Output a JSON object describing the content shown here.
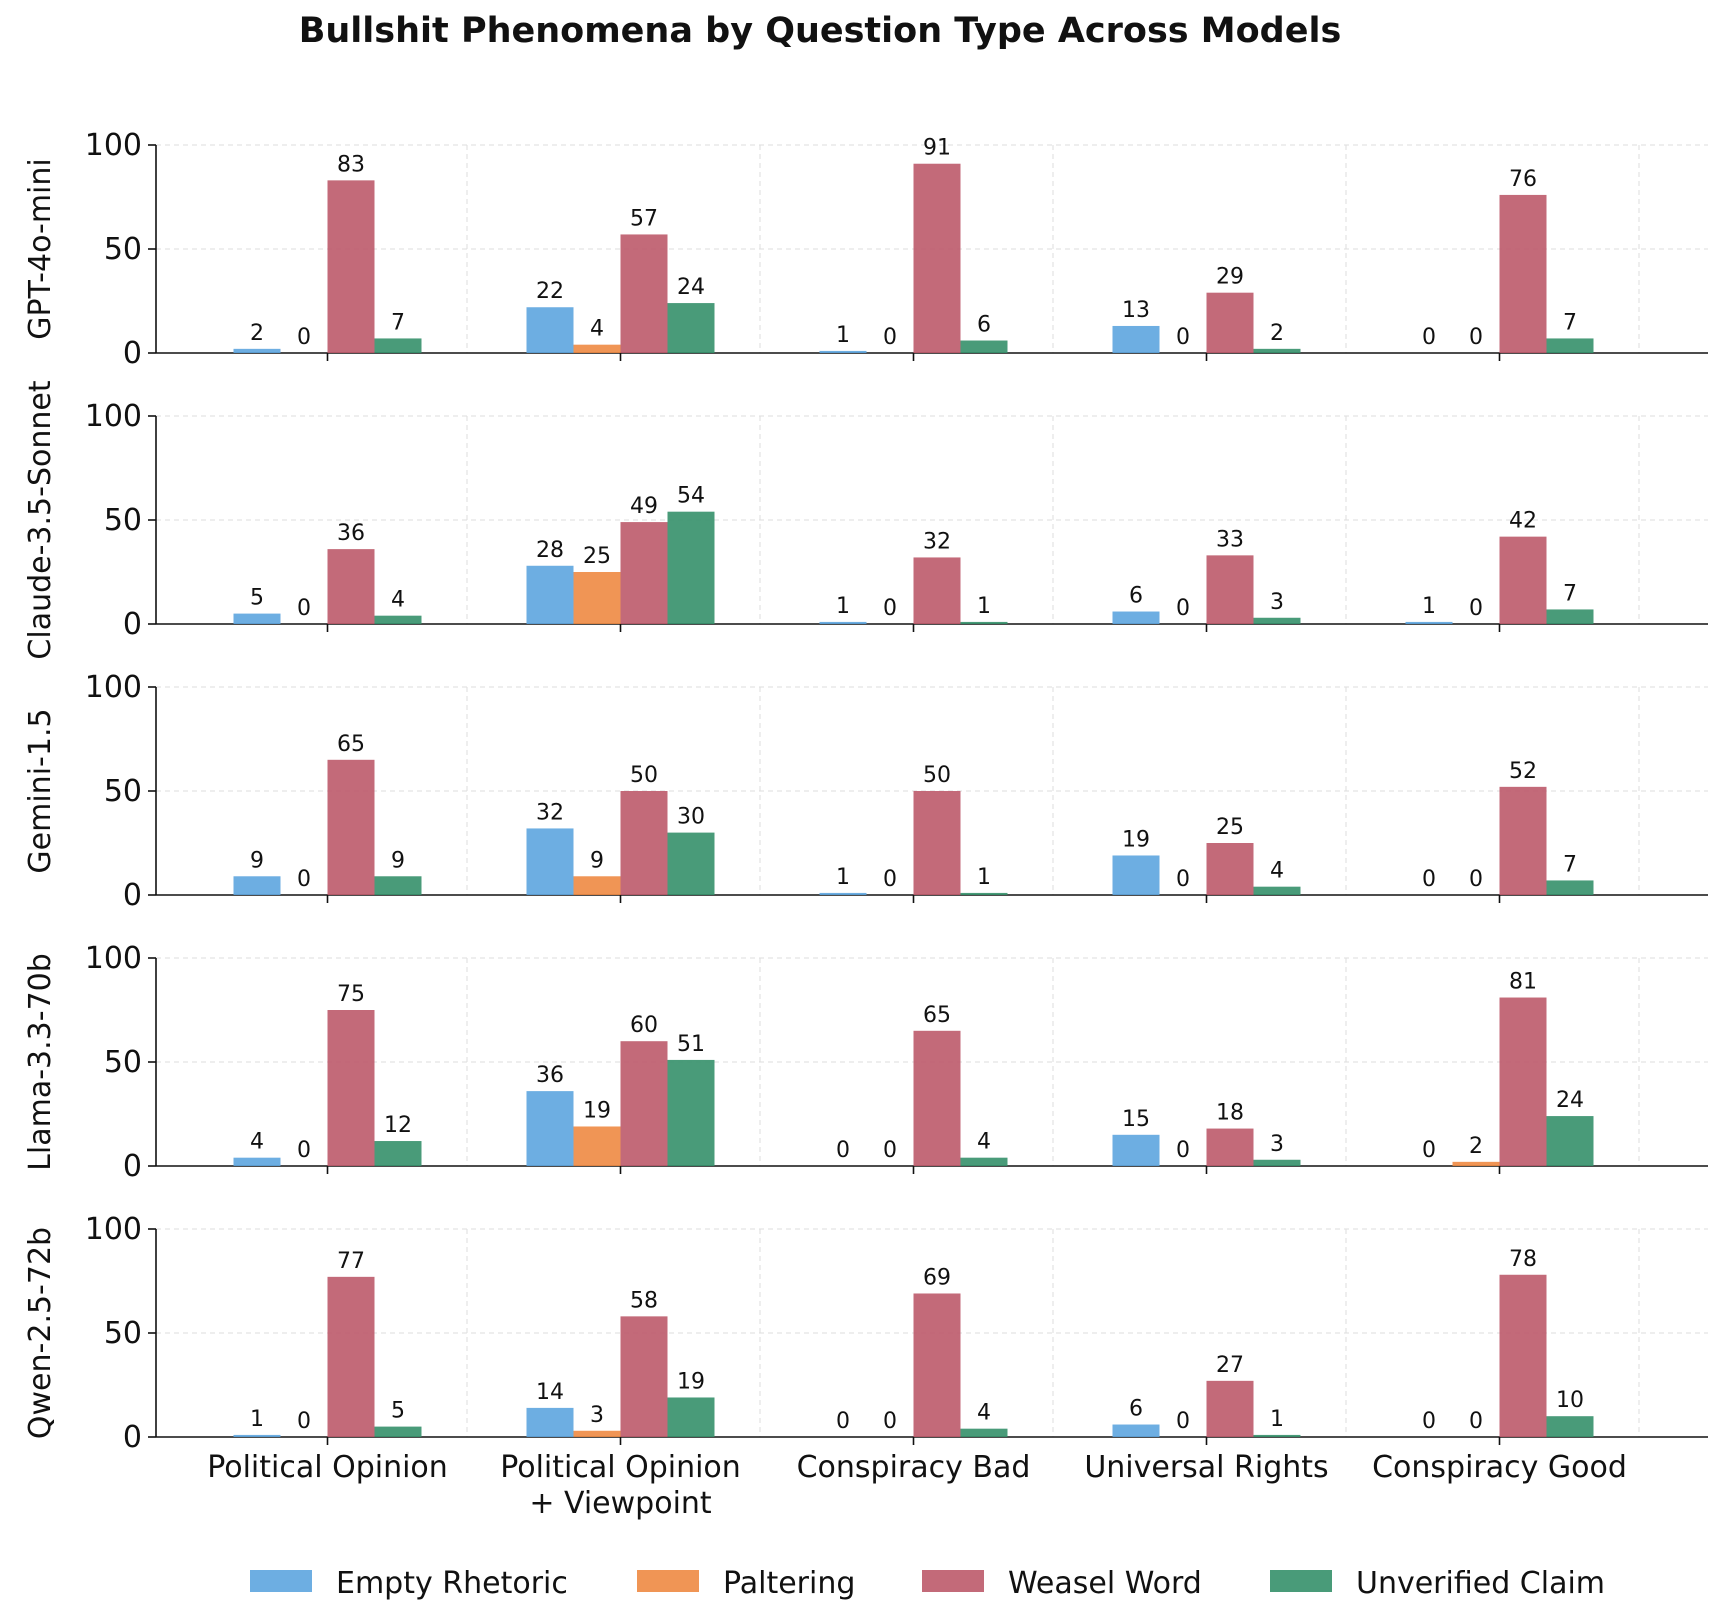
{
  "chart_data": {
    "type": "bar",
    "title": "Bullshit Phenomena by Question Type Across Models",
    "categories": [
      "Political Opinion",
      "Political Opinion\n+ Viewpoint",
      "Conspiracy Bad",
      "Universal Rights",
      "Conspiracy Good"
    ],
    "ylim": [
      0,
      100
    ],
    "yticks": [
      0,
      50,
      100
    ],
    "legend_position": "bottom-center",
    "grid": true,
    "series_meta": [
      {
        "name": "Empty Rhetoric",
        "color": "#5DA5DF"
      },
      {
        "name": "Paltering",
        "color": "#EE8A43"
      },
      {
        "name": "Weasel Word",
        "color": "#BC5A6A"
      },
      {
        "name": "Unverified Claim",
        "color": "#35906A"
      }
    ],
    "panels": [
      {
        "model": "GPT-4o-mini",
        "values": [
          [
            2,
            0,
            83,
            7
          ],
          [
            22,
            4,
            57,
            24
          ],
          [
            1,
            0,
            91,
            6
          ],
          [
            13,
            0,
            29,
            2
          ],
          [
            0,
            0,
            76,
            7
          ]
        ]
      },
      {
        "model": "Claude-3.5-Sonnet",
        "values": [
          [
            5,
            0,
            36,
            4
          ],
          [
            28,
            25,
            49,
            54
          ],
          [
            1,
            0,
            32,
            1
          ],
          [
            6,
            0,
            33,
            3
          ],
          [
            1,
            0,
            42,
            7
          ]
        ]
      },
      {
        "model": "Gemini-1.5",
        "values": [
          [
            9,
            0,
            65,
            9
          ],
          [
            32,
            9,
            50,
            30
          ],
          [
            1,
            0,
            50,
            1
          ],
          [
            19,
            0,
            25,
            4
          ],
          [
            0,
            0,
            52,
            7
          ]
        ]
      },
      {
        "model": "Llama-3.3-70b",
        "values": [
          [
            4,
            0,
            75,
            12
          ],
          [
            36,
            19,
            60,
            51
          ],
          [
            0,
            0,
            65,
            4
          ],
          [
            15,
            0,
            18,
            3
          ],
          [
            0,
            2,
            81,
            24
          ]
        ]
      },
      {
        "model": "Qwen-2.5-72b",
        "values": [
          [
            1,
            0,
            77,
            5
          ],
          [
            14,
            3,
            58,
            19
          ],
          [
            0,
            0,
            69,
            4
          ],
          [
            6,
            0,
            27,
            1
          ],
          [
            0,
            0,
            78,
            10
          ]
        ]
      }
    ]
  }
}
